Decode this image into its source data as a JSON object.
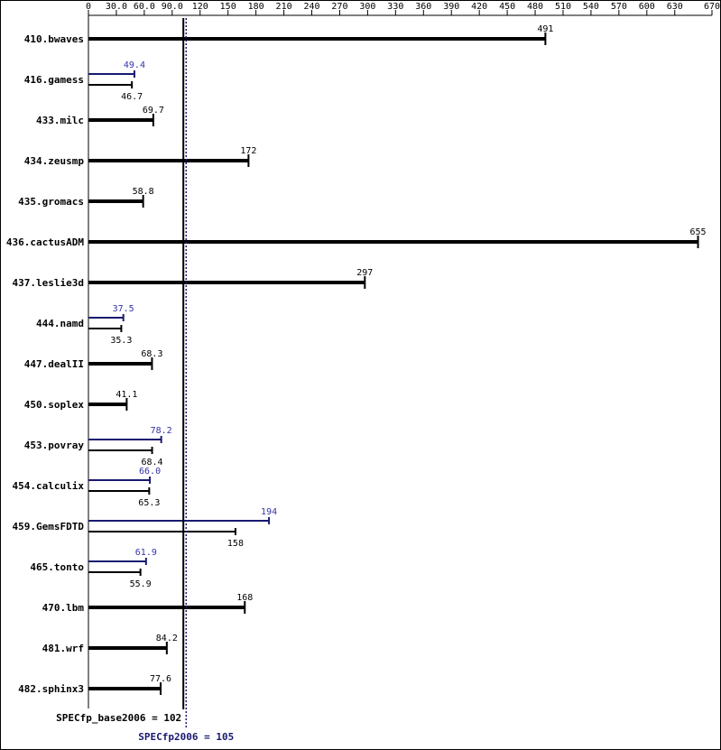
{
  "chart_data": {
    "type": "bar",
    "categories": [
      "410.bwaves",
      "416.gamess",
      "433.milc",
      "434.zeusmp",
      "435.gromacs",
      "436.cactusADM",
      "437.leslie3d",
      "444.namd",
      "447.dealII",
      "450.soplex",
      "453.povray",
      "454.calculix",
      "459.GemsFDTD",
      "465.tonto",
      "470.lbm",
      "481.wrf",
      "482.sphinx3"
    ],
    "series": [
      {
        "color": "#000000",
        "values": [
          491,
          46.7,
          69.7,
          172,
          58.8,
          655,
          297,
          35.3,
          68.3,
          41.1,
          68.4,
          65.3,
          158,
          55.9,
          168,
          84.2,
          77.6
        ]
      },
      {
        "color": "#191970",
        "values": [
          null,
          49.4,
          null,
          null,
          null,
          null,
          null,
          37.5,
          null,
          null,
          78.2,
          66,
          194,
          61.9,
          null,
          null,
          null
        ],
        "value_labels": [
          null,
          "49.4",
          null,
          null,
          null,
          null,
          null,
          "37.5",
          null,
          null,
          "78.2",
          "66.0",
          "194",
          "61.9",
          null,
          null,
          null
        ]
      }
    ],
    "reference_lines": [
      {
        "label": "SPECfp_base2006 = 102",
        "value": 102,
        "color": "#000000"
      },
      {
        "label": "SPECfp2006 = 105",
        "value": 105,
        "color": "#191970"
      }
    ],
    "xlim": [
      0,
      670
    ],
    "xticks": [
      0,
      {
        "value": 30,
        "label": "30.0"
      },
      {
        "value": 60,
        "label": "60.0"
      },
      {
        "value": 90,
        "label": "90.0"
      },
      120,
      150,
      180,
      210,
      240,
      270,
      300,
      330,
      360,
      390,
      420,
      450,
      480,
      510,
      540,
      570,
      600,
      630,
      670
    ]
  }
}
